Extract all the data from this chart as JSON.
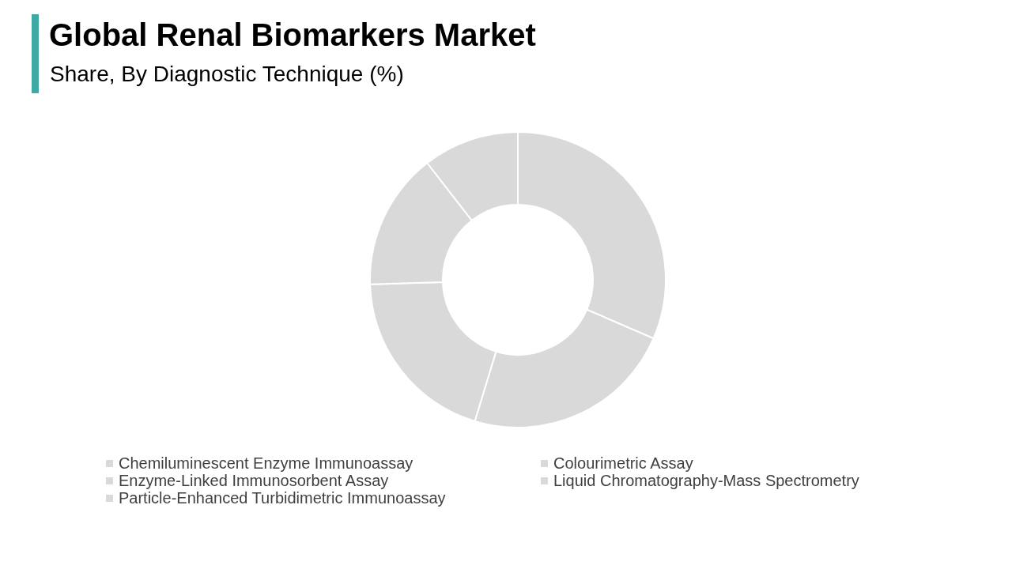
{
  "chart_data": {
    "type": "donut",
    "title": "Global Renal Biomarkers Market",
    "subtitle": "Share, By Diagnostic Technique (%)",
    "categories": [
      "Chemiluminescent Enzyme Immunoassay",
      "Colourimetric Assay",
      "Enzyme-Linked Immunosorbent Assay",
      "Liquid Chromatography-Mass Spectrometry",
      "Particle-Enhanced Turbidimetric Immunoassay"
    ],
    "values": [
      31.5,
      23.2,
      19.8,
      15,
      10.5
    ],
    "colors": [
      "#d9d9d9",
      "#d9d9d9",
      "#d9d9d9",
      "#d9d9d9",
      "#d9d9d9"
    ],
    "legend": "bottom"
  }
}
